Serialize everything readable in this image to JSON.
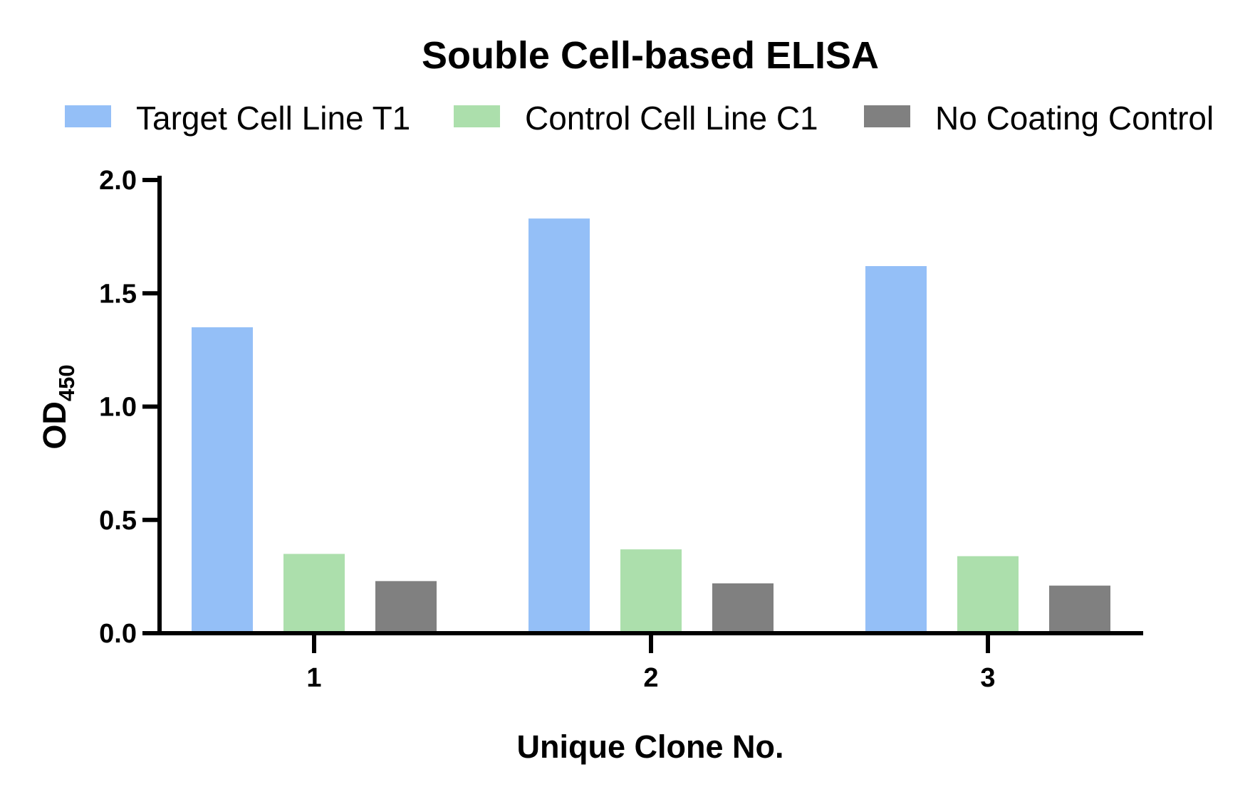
{
  "chart_data": {
    "type": "bar",
    "title": "Souble Cell-based ELISA",
    "xlabel": "Unique Clone No.",
    "ylabel": {
      "main": "OD",
      "subscript": "450"
    },
    "categories": [
      "1",
      "2",
      "3"
    ],
    "series": [
      {
        "name": "Target Cell Line T1",
        "color": "#94bff7",
        "values": [
          1.35,
          1.83,
          1.62
        ]
      },
      {
        "name": "Control Cell Line C1",
        "color": "#acdfac",
        "values": [
          0.35,
          0.37,
          0.34
        ]
      },
      {
        "name": "No Coating Control",
        "color": "#808080",
        "values": [
          0.23,
          0.22,
          0.21
        ]
      }
    ],
    "ylim": [
      0,
      2.0
    ],
    "yticks": [
      "0.0",
      "0.5",
      "1.0",
      "1.5",
      "2.0"
    ],
    "grid": false,
    "legend_position": "top"
  }
}
